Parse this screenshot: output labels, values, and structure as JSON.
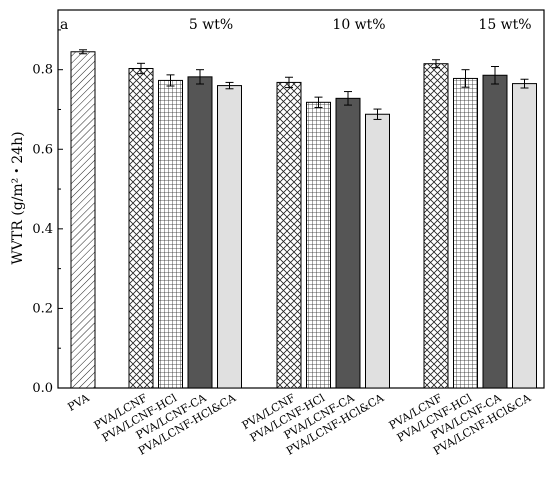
{
  "chart_data": {
    "type": "bar",
    "title": "",
    "panel_label": "a",
    "ylabel": "WVTR (g/m²・24h)",
    "xlabel": "",
    "ylim": [
      0,
      0.95
    ],
    "yticks": [
      "0.0",
      "0.2",
      "0.4",
      "0.6",
      "0.8"
    ],
    "grid": false,
    "legend": "none",
    "groups": [
      {
        "label": "",
        "bars": [
          {
            "category": "PVA",
            "value": 0.845,
            "error": 0.005,
            "pattern": "diagonal-hatch",
            "color": "#ffffff"
          }
        ]
      },
      {
        "label": "5 wt%",
        "bars": [
          {
            "category": "PVA/LCNF",
            "value": 0.803,
            "error": 0.013,
            "pattern": "crosshatch",
            "color": "#ffffff"
          },
          {
            "category": "PVA/LCNF-HCl",
            "value": 0.773,
            "error": 0.014,
            "pattern": "grid",
            "color": "#ffffff"
          },
          {
            "category": "PVA/LCNF-CA",
            "value": 0.782,
            "error": 0.018,
            "pattern": "solid",
            "color": "#555555"
          },
          {
            "category": "PVA/LCNF-HCl&CA",
            "value": 0.76,
            "error": 0.008,
            "pattern": "solid",
            "color": "#e0e0e0"
          }
        ]
      },
      {
        "label": "10 wt%",
        "bars": [
          {
            "category": "PVA/LCNF",
            "value": 0.768,
            "error": 0.013,
            "pattern": "crosshatch",
            "color": "#ffffff"
          },
          {
            "category": "PVA/LCNF-HCl",
            "value": 0.718,
            "error": 0.013,
            "pattern": "grid",
            "color": "#ffffff"
          },
          {
            "category": "PVA/LCNF-CA",
            "value": 0.728,
            "error": 0.017,
            "pattern": "solid",
            "color": "#555555"
          },
          {
            "category": "PVA/LCNF-HCl&CA",
            "value": 0.688,
            "error": 0.013,
            "pattern": "solid",
            "color": "#e0e0e0"
          }
        ]
      },
      {
        "label": "15 wt%",
        "bars": [
          {
            "category": "PVA/LCNF",
            "value": 0.815,
            "error": 0.01,
            "pattern": "crosshatch",
            "color": "#ffffff"
          },
          {
            "category": "PVA/LCNF-HCl",
            "value": 0.778,
            "error": 0.022,
            "pattern": "grid",
            "color": "#ffffff"
          },
          {
            "category": "PVA/LCNF-CA",
            "value": 0.786,
            "error": 0.022,
            "pattern": "solid",
            "color": "#555555"
          },
          {
            "category": "PVA/LCNF-HCl&CA",
            "value": 0.765,
            "error": 0.011,
            "pattern": "solid",
            "color": "#e0e0e0"
          }
        ]
      }
    ]
  }
}
